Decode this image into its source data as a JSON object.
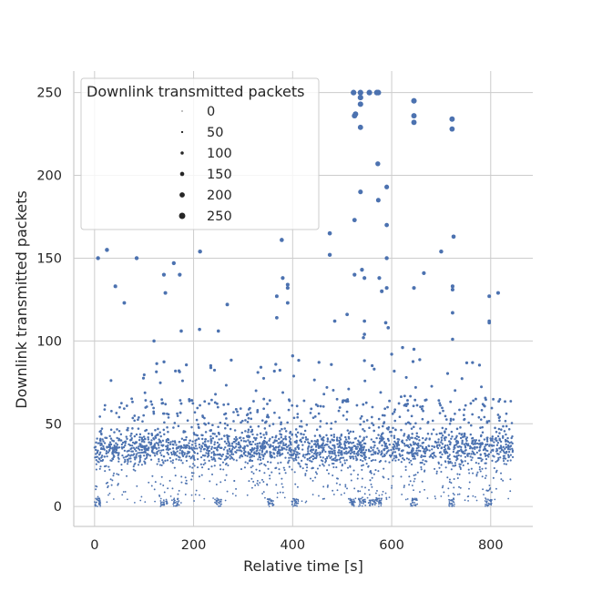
{
  "chart_data": {
    "type": "scatter",
    "xlabel": "Relative time [s]",
    "ylabel": "Downlink transmitted packets",
    "xlim": [
      -42,
      885
    ],
    "ylim": [
      -12,
      263
    ],
    "x_ticks": [
      0,
      200,
      400,
      600,
      800
    ],
    "x_tick_labels": [
      "0",
      "200",
      "400",
      "600",
      "800"
    ],
    "y_ticks": [
      0,
      50,
      100,
      150,
      200,
      250
    ],
    "y_tick_labels": [
      "0",
      "50",
      "100",
      "150",
      "200",
      "250"
    ],
    "grid": true,
    "marker_color": "#4c72b0",
    "grid_color": "#cccccc",
    "legend": {
      "title": "Downlink transmitted packets",
      "placement": "top-left",
      "size_levels": [
        0,
        50,
        100,
        150,
        200,
        250
      ],
      "labels": [
        "0",
        "50",
        "100",
        "150",
        "200",
        "250"
      ]
    },
    "point_size_encodes": "Downlink transmitted packets",
    "point_count_estimate": 3200,
    "baseline_band": {
      "x_range": [
        0,
        845
      ],
      "y_typical": [
        20,
        48
      ],
      "y_center": 35
    },
    "low_cluster_times": [
      5,
      140,
      165,
      250,
      355,
      405,
      520,
      540,
      560,
      575,
      645,
      720,
      795
    ],
    "outliers": [
      {
        "x": 7,
        "y": 150
      },
      {
        "x": 25,
        "y": 155
      },
      {
        "x": 42,
        "y": 133
      },
      {
        "x": 60,
        "y": 123
      },
      {
        "x": 85,
        "y": 150
      },
      {
        "x": 140,
        "y": 140
      },
      {
        "x": 143,
        "y": 129
      },
      {
        "x": 160,
        "y": 147
      },
      {
        "x": 172,
        "y": 140
      },
      {
        "x": 175,
        "y": 106
      },
      {
        "x": 213,
        "y": 154
      },
      {
        "x": 212,
        "y": 107
      },
      {
        "x": 250,
        "y": 106
      },
      {
        "x": 268,
        "y": 122
      },
      {
        "x": 368,
        "y": 127
      },
      {
        "x": 368,
        "y": 114
      },
      {
        "x": 378,
        "y": 161
      },
      {
        "x": 380,
        "y": 138
      },
      {
        "x": 390,
        "y": 134
      },
      {
        "x": 390,
        "y": 132
      },
      {
        "x": 390,
        "y": 123
      },
      {
        "x": 475,
        "y": 165
      },
      {
        "x": 475,
        "y": 152
      },
      {
        "x": 485,
        "y": 112
      },
      {
        "x": 510,
        "y": 116
      },
      {
        "x": 523,
        "y": 250
      },
      {
        "x": 525,
        "y": 236
      },
      {
        "x": 527,
        "y": 237
      },
      {
        "x": 537,
        "y": 250
      },
      {
        "x": 537,
        "y": 247
      },
      {
        "x": 537,
        "y": 243
      },
      {
        "x": 537,
        "y": 229
      },
      {
        "x": 555,
        "y": 250
      },
      {
        "x": 570,
        "y": 250
      },
      {
        "x": 573,
        "y": 250
      },
      {
        "x": 572,
        "y": 207
      },
      {
        "x": 573,
        "y": 185
      },
      {
        "x": 537,
        "y": 190
      },
      {
        "x": 525,
        "y": 173
      },
      {
        "x": 590,
        "y": 193
      },
      {
        "x": 590,
        "y": 170
      },
      {
        "x": 590,
        "y": 150
      },
      {
        "x": 590,
        "y": 132
      },
      {
        "x": 588,
        "y": 111
      },
      {
        "x": 593,
        "y": 108
      },
      {
        "x": 525,
        "y": 140
      },
      {
        "x": 540,
        "y": 143
      },
      {
        "x": 545,
        "y": 138
      },
      {
        "x": 575,
        "y": 138
      },
      {
        "x": 545,
        "y": 112
      },
      {
        "x": 545,
        "y": 104
      },
      {
        "x": 543,
        "y": 102
      },
      {
        "x": 580,
        "y": 130
      },
      {
        "x": 645,
        "y": 245
      },
      {
        "x": 645,
        "y": 236
      },
      {
        "x": 645,
        "y": 232
      },
      {
        "x": 645,
        "y": 132
      },
      {
        "x": 665,
        "y": 141
      },
      {
        "x": 700,
        "y": 154
      },
      {
        "x": 722,
        "y": 234
      },
      {
        "x": 722,
        "y": 228
      },
      {
        "x": 725,
        "y": 163
      },
      {
        "x": 723,
        "y": 133
      },
      {
        "x": 723,
        "y": 131
      },
      {
        "x": 723,
        "y": 117
      },
      {
        "x": 723,
        "y": 101
      },
      {
        "x": 797,
        "y": 127
      },
      {
        "x": 797,
        "y": 112
      },
      {
        "x": 797,
        "y": 111
      },
      {
        "x": 815,
        "y": 129
      },
      {
        "x": 120,
        "y": 100
      },
      {
        "x": 400,
        "y": 91
      },
      {
        "x": 622,
        "y": 96
      },
      {
        "x": 645,
        "y": 95
      },
      {
        "x": 600,
        "y": 92
      }
    ]
  }
}
